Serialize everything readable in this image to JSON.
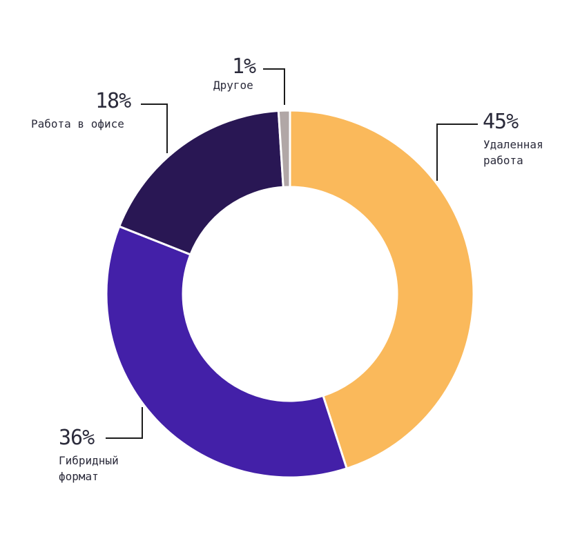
{
  "chart_data": {
    "type": "pie",
    "variant": "donut",
    "start_angle_deg": 0,
    "direction": "clockwise",
    "slices": [
      {
        "label": "Удаленная работа",
        "label_lines": [
          "Удаленная",
          "работа"
        ],
        "value": 45,
        "value_label": "45%",
        "color": "#fab95b"
      },
      {
        "label": "Гибридный формат",
        "label_lines": [
          "Гибридный",
          "формат"
        ],
        "value": 36,
        "value_label": "36%",
        "color": "#4320a8"
      },
      {
        "label": "Работа в офисе",
        "label_lines": [
          "Работа в офисе"
        ],
        "value": 18,
        "value_label": "18%",
        "color": "#291754"
      },
      {
        "label": "Другое",
        "label_lines": [
          "Другое"
        ],
        "value": 1,
        "value_label": "1%",
        "color": "#b1a7a6"
      }
    ]
  }
}
